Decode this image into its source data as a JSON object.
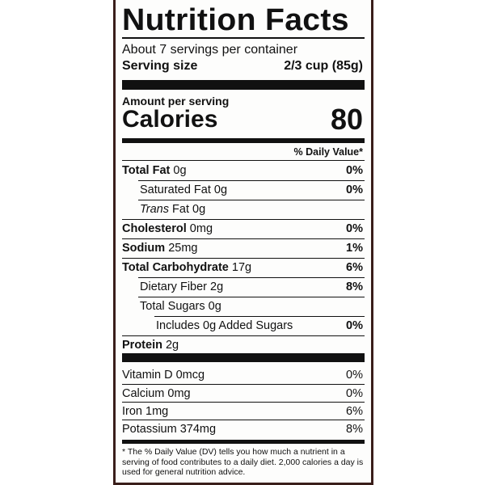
{
  "title": "Nutrition Facts",
  "servings_per_container": "About 7 servings per container",
  "serving_size": {
    "label": "Serving size",
    "value": "2/3 cup (85g)"
  },
  "amount_per_serving": "Amount per serving",
  "calories": {
    "label": "Calories",
    "value": "80"
  },
  "daily_value_header": "% Daily Value*",
  "nutrients": [
    {
      "name": "Total Fat",
      "amount": "0g",
      "dv": "0%"
    },
    {
      "name": "Saturated Fat",
      "amount": "0g",
      "dv": "0%"
    },
    {
      "name": "Trans",
      "suffix": "Fat 0g",
      "dv": ""
    },
    {
      "name": "Cholesterol",
      "amount": "0mg",
      "dv": "0%"
    },
    {
      "name": "Sodium",
      "amount": "25mg",
      "dv": "1%"
    },
    {
      "name": "Total Carbohydrate",
      "amount": "17g",
      "dv": "6%"
    },
    {
      "name": "Dietary Fiber",
      "amount": "2g",
      "dv": "8%"
    },
    {
      "name": "Total Sugars",
      "amount": "0g",
      "dv": ""
    },
    {
      "name": "Includes 0g Added Sugars",
      "amount": "",
      "dv": "0%"
    },
    {
      "name": "Protein",
      "amount": "2g",
      "dv": ""
    }
  ],
  "vitamins": [
    {
      "text": "Vitamin D 0mcg",
      "dv": "0%"
    },
    {
      "text": "Calcium 0mg",
      "dv": "0%"
    },
    {
      "text": "Iron 1mg",
      "dv": "6%"
    },
    {
      "text": "Potassium 374mg",
      "dv": "8%"
    }
  ],
  "footnote": "* The % Daily Value (DV) tells you how much a nutrient in a serving of food contributes to a daily diet. 2,000 calories a day is used for general nutrition advice."
}
